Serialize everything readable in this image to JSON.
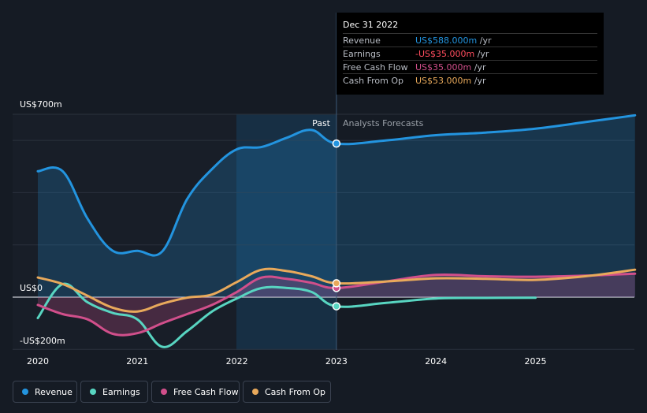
{
  "chart_data": {
    "type": "line",
    "title": "",
    "ylabel": "",
    "xlabel": "",
    "ylim": [
      -200,
      700
    ],
    "y_tick_labels": [
      "US$700m",
      "US$0",
      "-US$200m"
    ],
    "x_tick_labels": [
      "2020",
      "2021",
      "2022",
      "2023",
      "2024",
      "2025"
    ],
    "region_labels": {
      "past": "Past",
      "forecast": "Analysts Forecasts"
    },
    "divider_x": 2023.0,
    "series": [
      {
        "name": "Revenue",
        "color": "#2394df",
        "points": [
          [
            2020.0,
            482
          ],
          [
            2020.25,
            482
          ],
          [
            2020.5,
            300
          ],
          [
            2020.75,
            178
          ],
          [
            2021.0,
            177
          ],
          [
            2021.25,
            175
          ],
          [
            2021.5,
            375
          ],
          [
            2021.75,
            490
          ],
          [
            2022.0,
            566
          ],
          [
            2022.25,
            575
          ],
          [
            2022.5,
            610
          ],
          [
            2022.75,
            640
          ],
          [
            2023.0,
            588
          ],
          [
            2023.5,
            600
          ],
          [
            2024.0,
            620
          ],
          [
            2024.5,
            630
          ],
          [
            2025.0,
            645
          ],
          [
            2025.5,
            670
          ],
          [
            2026.0,
            696
          ]
        ]
      },
      {
        "name": "Earnings",
        "color": "#58d5c1",
        "points": [
          [
            2020.0,
            -80
          ],
          [
            2020.25,
            50
          ],
          [
            2020.5,
            -20
          ],
          [
            2020.75,
            -60
          ],
          [
            2021.0,
            -85
          ],
          [
            2021.25,
            -190
          ],
          [
            2021.5,
            -130
          ],
          [
            2021.75,
            -55
          ],
          [
            2022.0,
            -5
          ],
          [
            2022.25,
            35
          ],
          [
            2022.5,
            35
          ],
          [
            2022.75,
            20
          ],
          [
            2023.0,
            -35
          ],
          [
            2023.5,
            -22
          ],
          [
            2024.0,
            -5
          ],
          [
            2024.5,
            -3
          ],
          [
            2025.0,
            -2
          ]
        ]
      },
      {
        "name": "Free Cash Flow",
        "color": "#d14f8b",
        "points": [
          [
            2020.0,
            -30
          ],
          [
            2020.25,
            -65
          ],
          [
            2020.5,
            -85
          ],
          [
            2020.75,
            -140
          ],
          [
            2021.0,
            -138
          ],
          [
            2021.25,
            -100
          ],
          [
            2021.5,
            -65
          ],
          [
            2021.75,
            -30
          ],
          [
            2022.0,
            20
          ],
          [
            2022.25,
            75
          ],
          [
            2022.5,
            70
          ],
          [
            2022.75,
            55
          ],
          [
            2023.0,
            35
          ],
          [
            2023.5,
            60
          ],
          [
            2024.0,
            85
          ],
          [
            2024.5,
            80
          ],
          [
            2025.0,
            78
          ],
          [
            2025.5,
            82
          ],
          [
            2026.0,
            90
          ]
        ]
      },
      {
        "name": "Cash From Op",
        "color": "#e8a95b",
        "points": [
          [
            2020.0,
            75
          ],
          [
            2020.25,
            50
          ],
          [
            2020.5,
            5
          ],
          [
            2020.75,
            -40
          ],
          [
            2021.0,
            -55
          ],
          [
            2021.25,
            -25
          ],
          [
            2021.5,
            -2
          ],
          [
            2021.75,
            10
          ],
          [
            2022.0,
            58
          ],
          [
            2022.25,
            105
          ],
          [
            2022.5,
            100
          ],
          [
            2022.75,
            80
          ],
          [
            2023.0,
            53
          ],
          [
            2023.5,
            60
          ],
          [
            2024.0,
            72
          ],
          [
            2024.5,
            70
          ],
          [
            2025.0,
            66
          ],
          [
            2025.5,
            80
          ],
          [
            2026.0,
            105
          ]
        ]
      }
    ],
    "tooltip": {
      "date": "Dec 31 2022",
      "rows": [
        {
          "label": "Revenue",
          "value": "US$588.000m",
          "unit": "/yr",
          "color": "#2394df"
        },
        {
          "label": "Earnings",
          "value": "-US$35.000m",
          "unit": "/yr",
          "color": "#ff4d5e"
        },
        {
          "label": "Free Cash Flow",
          "value": "US$35.000m",
          "unit": "/yr",
          "color": "#d14f8b"
        },
        {
          "label": "Cash From Op",
          "value": "US$53.000m",
          "unit": "/yr",
          "color": "#e8a95b"
        }
      ]
    },
    "legend": [
      {
        "label": "Revenue",
        "color": "#2394df"
      },
      {
        "label": "Earnings",
        "color": "#58d5c1"
      },
      {
        "label": "Free Cash Flow",
        "color": "#d14f8b"
      },
      {
        "label": "Cash From Op",
        "color": "#e8a95b"
      }
    ]
  }
}
